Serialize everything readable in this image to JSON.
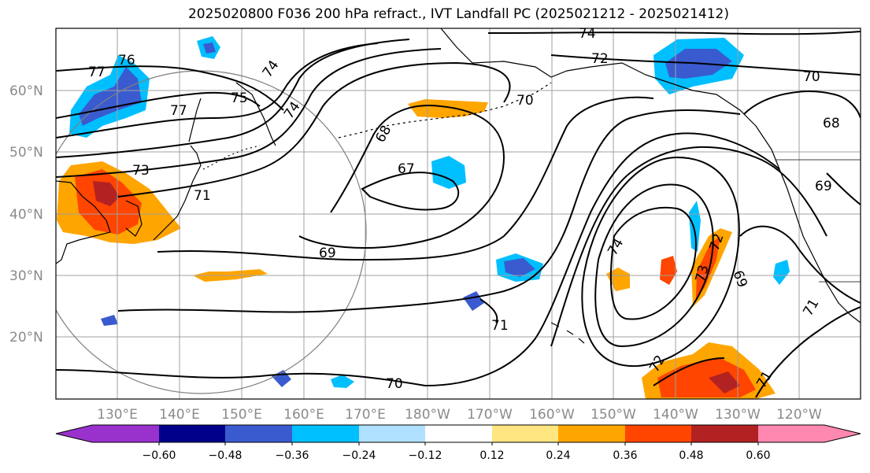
{
  "title": "2025020800 F036 200 hPa refract., IVT Landfall PC (2025021212 - 2025021412)",
  "lat_labels": [
    "60°N",
    "50°N",
    "40°N",
    "30°N",
    "20°N"
  ],
  "lon_labels": [
    "130°E",
    "140°E",
    "150°E",
    "160°E",
    "170°E",
    "180°W",
    "170°W",
    "160°W",
    "150°W",
    "140°W",
    "130°W",
    "120°W"
  ],
  "contour_labels": [
    "74",
    "72",
    "70",
    "77",
    "76",
    "74",
    "75",
    "77",
    "74",
    "70",
    "68",
    "68",
    "73",
    "67",
    "71",
    "69",
    "69",
    "74",
    "73",
    "72",
    "69",
    "71",
    "71",
    "72",
    "70",
    "71"
  ],
  "colorbar": {
    "tick_labels": [
      "−0.60",
      "−0.48",
      "−0.36",
      "−0.24",
      "−0.12",
      "0.12",
      "0.24",
      "0.36",
      "0.48",
      "0.60"
    ],
    "colors": [
      "#9932cc",
      "#00008b",
      "#3a5bcf",
      "#00bfff",
      "#b0e0ff",
      "#ffffff",
      "#ffe680",
      "#ffa500",
      "#ff4500",
      "#b22222",
      "#ff88b0",
      "#ff88b0"
    ]
  },
  "colors": {
    "grid": "#a0a0a0",
    "contour": "#000000",
    "tick_label": "#8a8a8a",
    "circle": "#808080"
  }
}
